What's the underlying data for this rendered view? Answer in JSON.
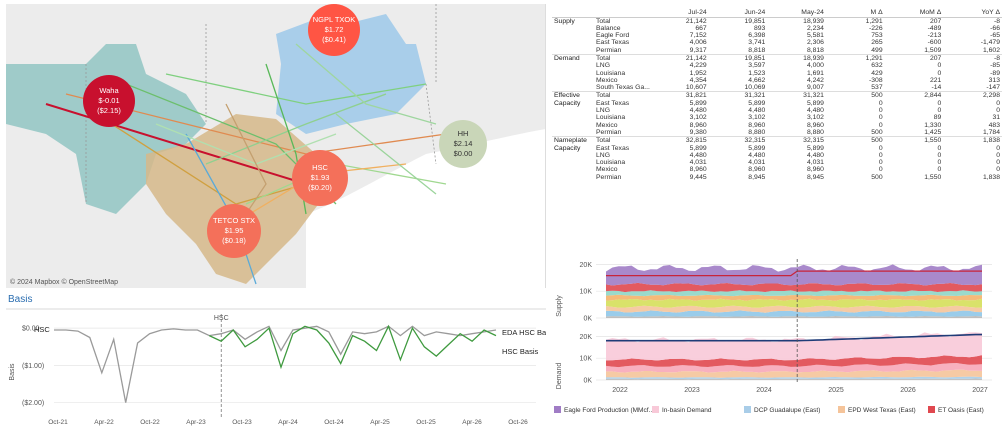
{
  "map": {
    "credit": "© 2024 Mapbox  © OpenStreetMap",
    "hubs": [
      {
        "name": "NGPL TXOK",
        "price": "$1.72",
        "basis": "($0.41)",
        "color": "#ff5544"
      },
      {
        "name": "Waha",
        "price": "$-0.01",
        "basis": "($2.15)",
        "color": "#c8102e"
      },
      {
        "name": "HH",
        "price": "$2.14",
        "basis": "$0.00",
        "color": "#c9d6b8"
      },
      {
        "name": "HSC",
        "price": "$1.93",
        "basis": "($0.20)",
        "color": "#f4705a"
      },
      {
        "name": "TETCO STX",
        "price": "$1.95",
        "basis": "($0.18)",
        "color": "#f4705a"
      }
    ]
  },
  "basis_chart": {
    "title": "Basis",
    "ylabel": "Basis",
    "yticks": [
      "$0.00",
      "($1.00)",
      "($2.00)"
    ],
    "xticks": [
      "Oct-21",
      "Apr-22",
      "Oct-22",
      "Apr-23",
      "Oct-23",
      "Apr-24",
      "Oct-24",
      "Apr-25",
      "Oct-25",
      "Apr-26",
      "Oct-26"
    ],
    "marker_label": "HSC",
    "left_label": "HSC",
    "series_labels": [
      "EDA HSC Basis",
      "HSC Basis"
    ]
  },
  "table": {
    "columns": [
      "",
      "",
      "Jul-24",
      "Jun-24",
      "May-24",
      "M Δ",
      "MoM Δ",
      "YoY Δ"
    ],
    "groups": [
      {
        "name": "Supply",
        "rows": [
          [
            "Total",
            "21,142",
            "19,851",
            "18,939",
            "1,291",
            "207",
            "-8"
          ],
          [
            "Balance",
            "667",
            "893",
            "2,234",
            "-226",
            "-489",
            "-66"
          ],
          [
            "Eagle Ford",
            "7,152",
            "6,398",
            "5,581",
            "753",
            "-213",
            "-65"
          ],
          [
            "East Texas",
            "4,006",
            "3,741",
            "2,306",
            "265",
            "-600",
            "-1,479"
          ],
          [
            "Permian",
            "9,317",
            "8,818",
            "8,818",
            "499",
            "1,509",
            "1,602"
          ]
        ]
      },
      {
        "name": "Demand",
        "rows": [
          [
            "Total",
            "21,142",
            "19,851",
            "18,939",
            "1,291",
            "207",
            "-8"
          ],
          [
            "LNG",
            "4,229",
            "3,597",
            "4,000",
            "632",
            "0",
            "-85"
          ],
          [
            "Louisiana",
            "1,952",
            "1,523",
            "1,691",
            "429",
            "0",
            "-89"
          ],
          [
            "Mexico",
            "4,354",
            "4,662",
            "4,242",
            "-308",
            "221",
            "313"
          ],
          [
            "South Texas Ga...",
            "10,607",
            "10,069",
            "9,007",
            "537",
            "-14",
            "-147"
          ]
        ]
      },
      {
        "name": "Effective Capacity",
        "rows": [
          [
            "Total",
            "31,821",
            "31,321",
            "31,321",
            "500",
            "2,844",
            "2,298"
          ],
          [
            "East Texas",
            "5,899",
            "5,899",
            "5,899",
            "0",
            "0",
            "0"
          ],
          [
            "LNG",
            "4,480",
            "4,480",
            "4,480",
            "0",
            "0",
            "0"
          ],
          [
            "Louisiana",
            "3,102",
            "3,102",
            "3,102",
            "0",
            "89",
            "31"
          ],
          [
            "Mexico",
            "8,960",
            "8,960",
            "8,960",
            "0",
            "1,330",
            "483"
          ],
          [
            "Permian",
            "9,380",
            "8,880",
            "8,880",
            "500",
            "1,425",
            "1,784"
          ]
        ]
      },
      {
        "name": "Nameplate Capacity",
        "rows": [
          [
            "Total",
            "32,815",
            "32,315",
            "32,315",
            "500",
            "1,550",
            "1,838"
          ],
          [
            "East Texas",
            "5,899",
            "5,899",
            "5,899",
            "0",
            "0",
            "0"
          ],
          [
            "LNG",
            "4,480",
            "4,480",
            "4,480",
            "0",
            "0",
            "0"
          ],
          [
            "Louisiana",
            "4,031",
            "4,031",
            "4,031",
            "0",
            "0",
            "0"
          ],
          [
            "Mexico",
            "8,960",
            "8,960",
            "8,960",
            "0",
            "0",
            "0"
          ],
          [
            "Permian",
            "9,445",
            "8,945",
            "8,945",
            "500",
            "1,550",
            "1,838"
          ]
        ]
      }
    ]
  },
  "stack_charts": {
    "supply_label": "Supply",
    "demand_label": "Demand",
    "yticks": [
      "20K",
      "10K",
      "0K"
    ],
    "xticks": [
      "2022",
      "2023",
      "2024",
      "2025",
      "2026",
      "2027"
    ],
    "legend": [
      {
        "label": "Eagle Ford Production (MMcf...",
        "color": "#a07cc5"
      },
      {
        "label": "In-basin Demand",
        "color": "#f8c9d8"
      },
      {
        "label": "DCP Guadalupe (East)",
        "color": "#a9cde8"
      },
      {
        "label": "EPD West Texas (East)",
        "color": "#f5c49a"
      },
      {
        "label": "ET Oasis (East)",
        "color": "#e0484f"
      }
    ]
  },
  "chart_data": [
    {
      "type": "line",
      "title": "Basis",
      "ylabel": "Basis",
      "ylim": [
        -2.2,
        0.3
      ],
      "x": [
        "Oct-21",
        "Jan-22",
        "Apr-22",
        "Jul-22",
        "Sep-22",
        "Oct-22",
        "Nov-22",
        "Dec-22",
        "Jan-23",
        "Apr-23",
        "Jul-23",
        "Oct-23",
        "Jan-24",
        "Apr-24",
        "May-24",
        "Jun-24",
        "Jul-24",
        "Aug-24",
        "Sep-24",
        "Oct-24",
        "Nov-24",
        "Dec-24",
        "Jan-25",
        "Mar-25",
        "Apr-25",
        "May-25",
        "Jun-25",
        "Aug-25",
        "Oct-25",
        "Nov-25",
        "Jan-26",
        "Mar-26",
        "Apr-26",
        "May-26",
        "Jul-26",
        "Sep-26",
        "Oct-26",
        "Dec-26"
      ],
      "series": [
        {
          "name": "EDA HSC Basis",
          "values": [
            -0.05,
            -0.05,
            -0.08,
            -0.25,
            -1.2,
            -0.3,
            -2.0,
            -0.4,
            -0.15,
            -0.05,
            -0.02,
            -0.05,
            -0.05,
            -0.2,
            -0.15,
            -0.05,
            -0.3,
            -0.1,
            0.05,
            -0.6,
            -0.05,
            0.0,
            0.05,
            -0.1,
            -0.7,
            -0.1,
            -0.15,
            -0.1,
            0.05,
            -0.2,
            0.05,
            -0.2,
            -0.1,
            -0.15,
            -0.2,
            -0.15,
            -0.1,
            -0.05
          ]
        },
        {
          "name": "HSC Basis",
          "values": [
            null,
            null,
            null,
            null,
            null,
            null,
            null,
            null,
            null,
            null,
            null,
            null,
            null,
            -0.2,
            -0.35,
            -0.05,
            -0.5,
            -0.3,
            0.0,
            -1.05,
            -0.15,
            0.05,
            -0.05,
            -0.4,
            -0.95,
            -0.2,
            -0.35,
            -0.6,
            0.05,
            -0.85,
            0.0,
            -0.5,
            -0.75,
            -0.45,
            -0.15,
            -0.35,
            -0.05,
            -0.2
          ]
        }
      ]
    },
    {
      "type": "area",
      "ylabel": "Supply",
      "ylim": [
        0,
        22000
      ],
      "x": [
        "2022",
        "2023",
        "2024",
        "2025",
        "2026",
        "2027"
      ],
      "series": [
        {
          "name": "Eagle Ford Production (MMcf...",
          "values": [
            19500,
            19800,
            19900,
            20300,
            20600,
            21000
          ]
        },
        {
          "name": "ET Oasis (East)",
          "values": [
            13600,
            14000,
            13900,
            13800,
            14100,
            14300
          ]
        }
      ]
    },
    {
      "type": "area",
      "ylabel": "Demand",
      "ylim": [
        0,
        22000
      ],
      "x": [
        "2022",
        "2023",
        "2024",
        "2025",
        "2026",
        "2027"
      ],
      "series": [
        {
          "name": "In-basin Demand",
          "values": [
            18000,
            18500,
            18400,
            19500,
            20500,
            21000
          ]
        },
        {
          "name": "ET Oasis (East)",
          "values": [
            9000,
            9300,
            9200,
            10200,
            11000,
            11500
          ]
        }
      ]
    }
  ]
}
